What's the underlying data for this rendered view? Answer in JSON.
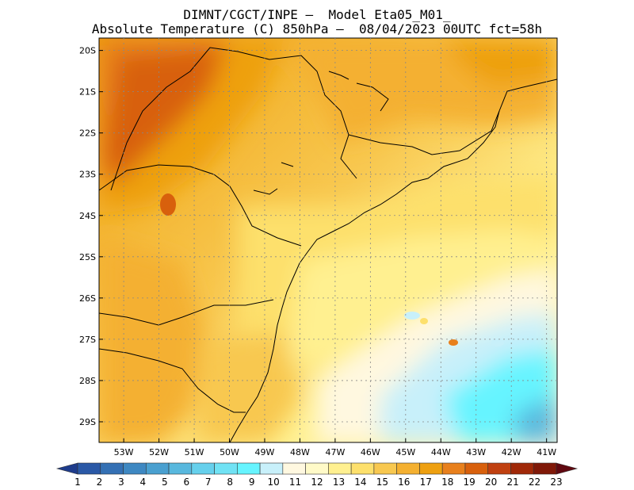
{
  "header": {
    "line1": "DIMNT/CGCT/INPE –  Model Eta05_M01_",
    "line2": "Absolute Temperature (C) 850hPa –  08/04/2023 00UTC fct=58h"
  },
  "map": {
    "lon_range": [
      -53.7,
      -40.7
    ],
    "lat_range": [
      -29.5,
      -19.7
    ],
    "lat_labels": [
      "20S",
      "21S",
      "22S",
      "23S",
      "24S",
      "25S",
      "26S",
      "27S",
      "28S",
      "29S"
    ],
    "lat_values": [
      -20,
      -21,
      -22,
      -23,
      -24,
      -25,
      -26,
      -27,
      -28,
      -29
    ],
    "lon_labels": [
      "53W",
      "52W",
      "51W",
      "50W",
      "49W",
      "48W",
      "47W",
      "46W",
      "45W",
      "44W",
      "43W",
      "42W",
      "41W"
    ],
    "lon_values": [
      -53,
      -52,
      -51,
      -50,
      -49,
      -48,
      -47,
      -46,
      -45,
      -44,
      -43,
      -42,
      -41
    ],
    "grid": true
  },
  "colorbar": {
    "labels": [
      "1",
      "2",
      "3",
      "4",
      "5",
      "6",
      "7",
      "8",
      "9",
      "10",
      "11",
      "12",
      "13",
      "14",
      "15",
      "16",
      "17",
      "18",
      "19",
      "20",
      "21",
      "22",
      "23"
    ],
    "colors": [
      "#1e3c8c",
      "#2a58a6",
      "#3470b4",
      "#3e88c2",
      "#4aa0d0",
      "#58b8de",
      "#66d0ec",
      "#70e2f4",
      "#66f4ff",
      "#c8f0fa",
      "#fff8e0",
      "#fffac8",
      "#fff090",
      "#fde06c",
      "#f8c850",
      "#f4b030",
      "#eea010",
      "#e8801c",
      "#d8600c",
      "#c04010",
      "#a02808",
      "#801808",
      "#600810"
    ]
  }
}
